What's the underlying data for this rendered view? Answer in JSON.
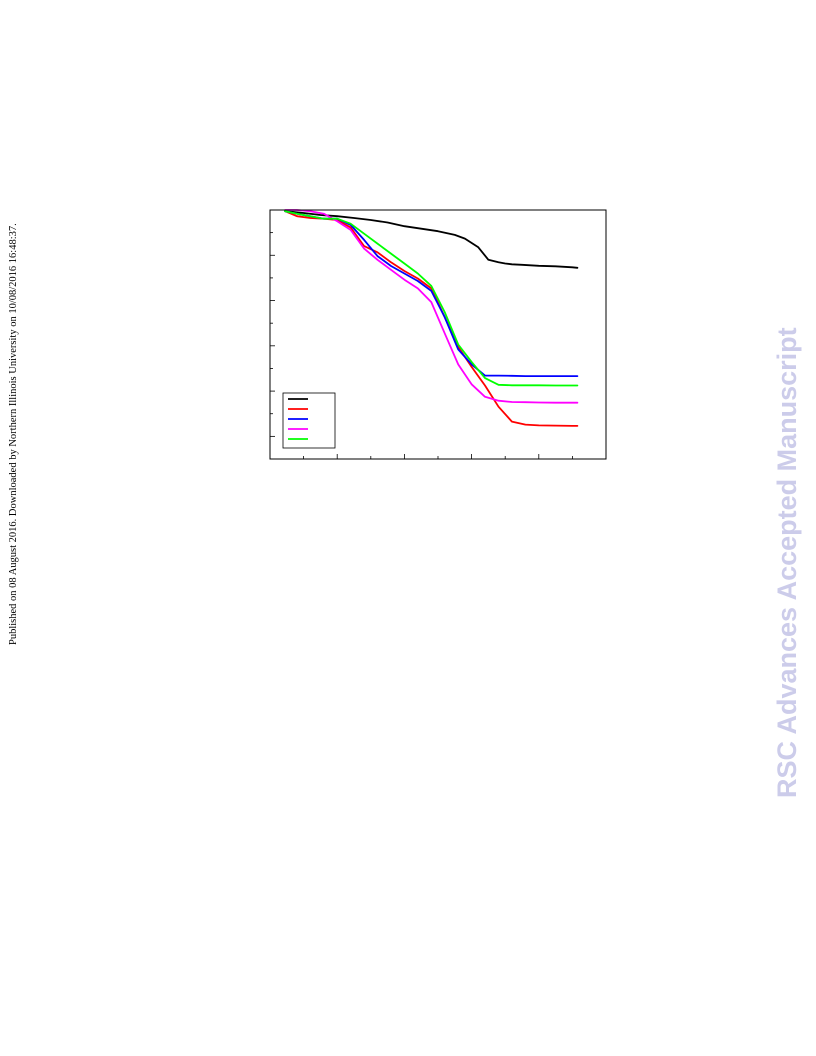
{
  "page": {
    "side_note": "Published on 08 August 2016. Downloaded by Northern Illinois University on 10/08/2016 16:48:37.",
    "watermark": "RSC Advances Accepted Manuscript"
  },
  "colors": {
    "black": "#000000",
    "red": "#ff0000",
    "blue": "#0000ff",
    "magenta": "#ff00ff",
    "green": "#00ff00",
    "watermark": "#ccccea"
  },
  "chart_data": {
    "type": "line",
    "title": "",
    "xlabel": "",
    "ylabel": "",
    "xlim": [
      0,
      100
    ],
    "ylim": [
      0,
      100
    ],
    "grid": false,
    "legend": {
      "placement": "bottom-left",
      "entries": [
        "",
        "",
        "",
        "",
        ""
      ]
    },
    "series": [
      {
        "color": "#000000",
        "x": [
          4.5,
          10,
          15,
          20,
          25,
          30,
          35,
          40,
          45,
          50,
          55,
          58,
          62,
          65,
          68,
          70,
          72,
          75,
          80,
          85,
          90,
          91.5
        ],
        "y": [
          99.5,
          98.8,
          98,
          97.5,
          96.8,
          96,
          95,
          93.5,
          92.5,
          91.5,
          90,
          88.5,
          85,
          80,
          79,
          78.5,
          78.2,
          78,
          77.6,
          77.4,
          77,
          76.8
        ]
      },
      {
        "color": "#ff0000",
        "x": [
          4.5,
          8,
          12,
          16,
          20,
          24,
          28,
          32,
          36,
          40,
          44,
          48,
          52,
          56,
          60,
          64,
          68,
          72,
          76,
          80,
          85,
          90,
          91.5
        ],
        "y": [
          99.5,
          97.5,
          96.8,
          96.5,
          96,
          93,
          85.5,
          83,
          79,
          75.5,
          72.5,
          68.5,
          57,
          45,
          37,
          29.5,
          21,
          15,
          13.8,
          13.5,
          13.4,
          13.3,
          13.3
        ]
      },
      {
        "color": "#0000ff",
        "x": [
          4.5,
          8,
          12,
          16,
          20,
          24,
          28,
          32,
          36,
          40,
          44,
          48,
          52,
          56,
          60,
          64,
          68,
          72,
          76,
          80,
          85,
          90,
          91.5
        ],
        "y": [
          99.5,
          98.5,
          97.5,
          96.5,
          96.5,
          94,
          88,
          81.5,
          77.5,
          74.5,
          71.5,
          67.5,
          57,
          44,
          38,
          33.5,
          33.5,
          33.4,
          33.3,
          33.3,
          33.3,
          33.3,
          33.3
        ]
      },
      {
        "color": "#ff00ff",
        "x": [
          4.5,
          8,
          12,
          16,
          20,
          24,
          28,
          32,
          36,
          40,
          44,
          48,
          52,
          56,
          60,
          64,
          68,
          72,
          76,
          80,
          85,
          90,
          91.5
        ],
        "y": [
          100,
          100,
          99.5,
          98.5,
          95.5,
          92,
          84.5,
          80,
          76,
          72,
          68.5,
          63,
          50.5,
          38,
          30,
          25,
          23.4,
          22.9,
          22.8,
          22.7,
          22.6,
          22.6,
          22.6
        ]
      },
      {
        "color": "#00ff00",
        "x": [
          4.5,
          8,
          12,
          16,
          20,
          24,
          28,
          32,
          36,
          40,
          44,
          48,
          52,
          56,
          60,
          64,
          68,
          72,
          76,
          80,
          85,
          90,
          91.5
        ],
        "y": [
          99.5,
          98.5,
          97.5,
          96.5,
          96.5,
          94.5,
          90.5,
          86.5,
          82.5,
          78.5,
          74.5,
          69.5,
          59,
          46,
          39,
          32.5,
          29.8,
          29.6,
          29.6,
          29.6,
          29.5,
          29.5,
          29.5
        ]
      }
    ]
  }
}
